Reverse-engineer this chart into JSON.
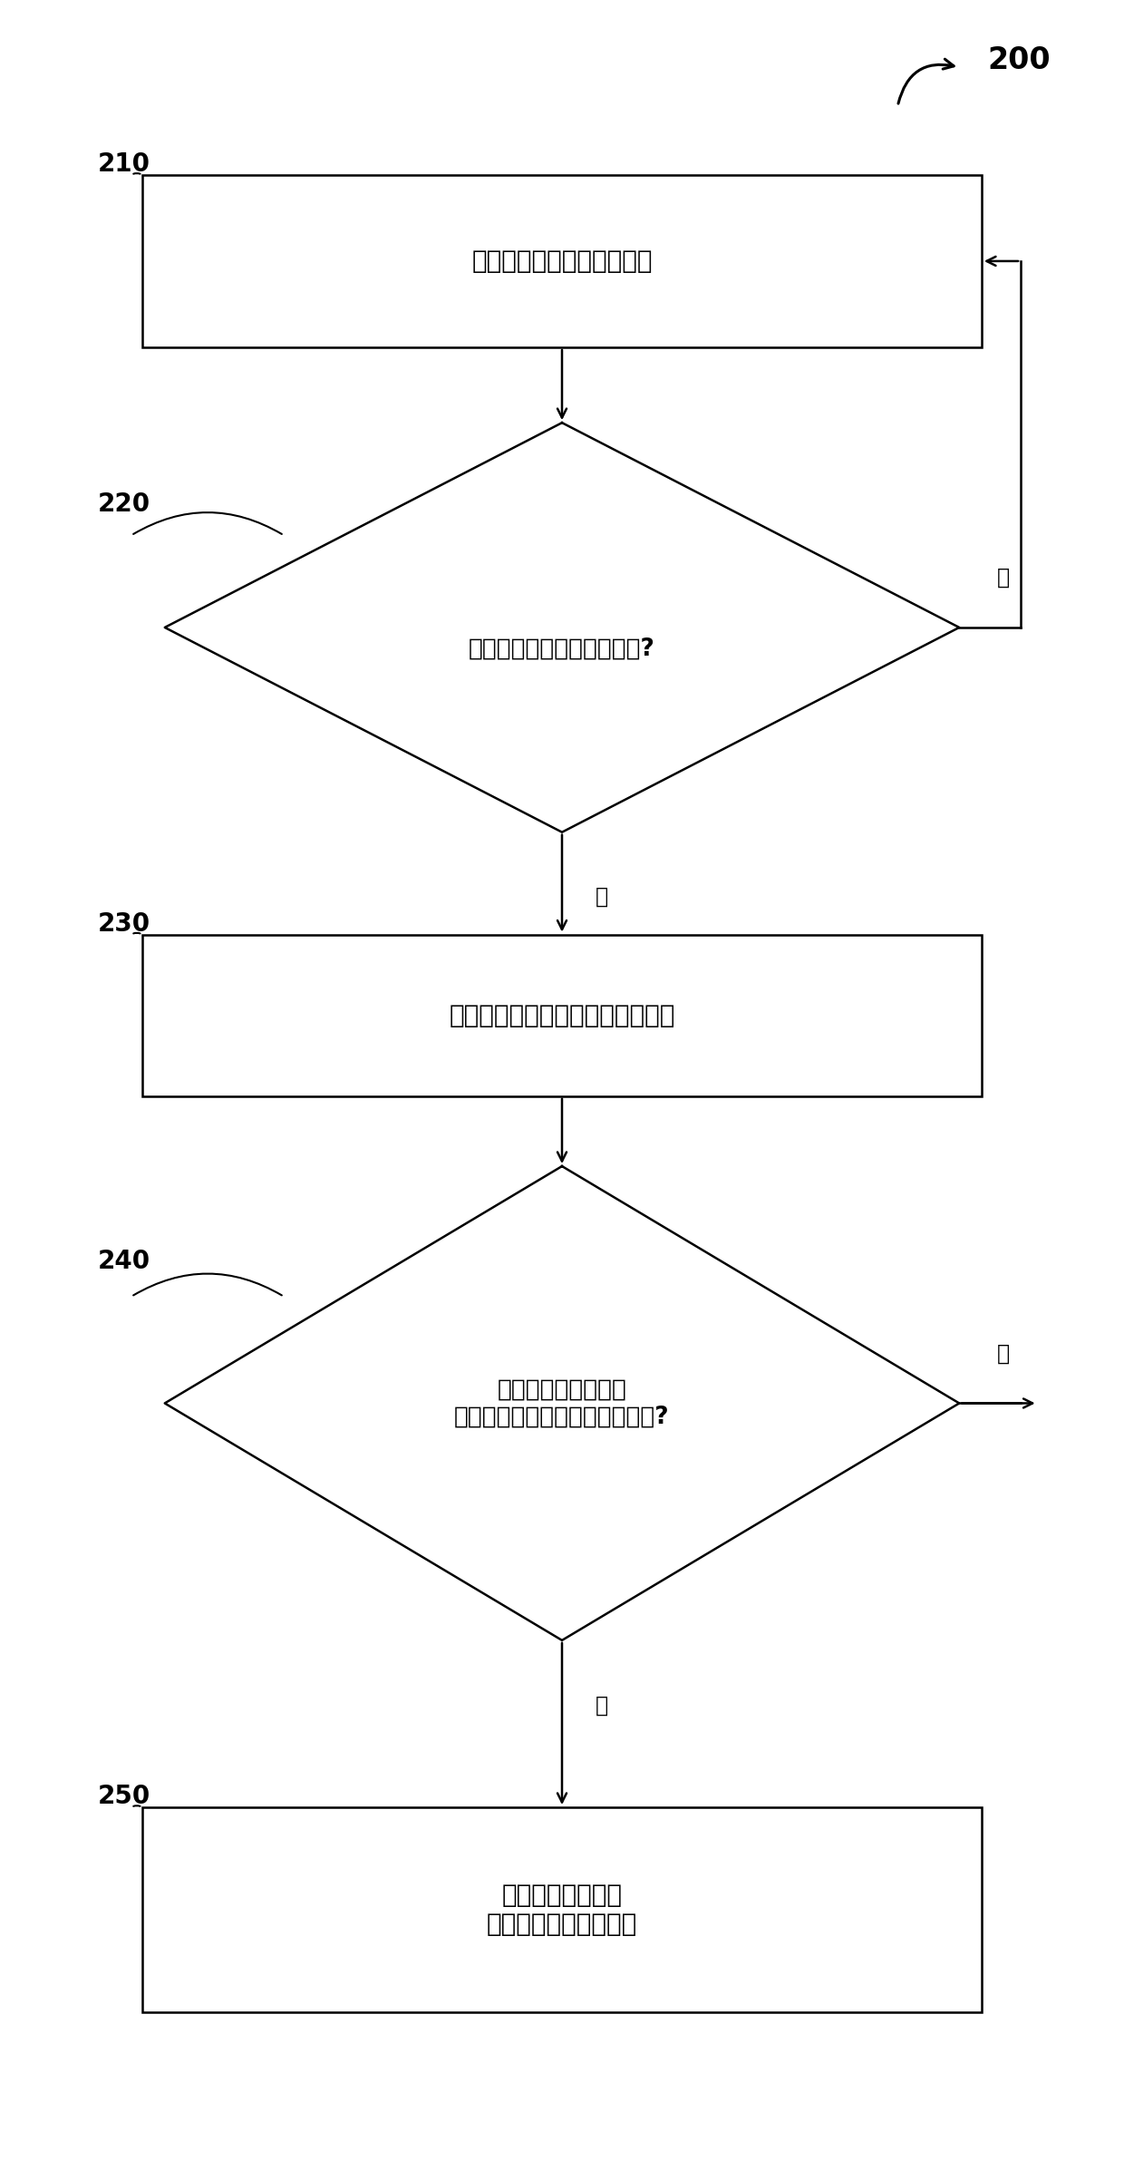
{
  "bg_color": "#ffffff",
  "line_color": "#000000",
  "fig_width": 12.4,
  "fig_height": 23.82,
  "label_200": "200",
  "label_210": "210",
  "label_220": "220",
  "label_230": "230",
  "label_240": "240",
  "label_250": "250",
  "box1_text": "测量振动计中的物质的流率",
  "diamond1_text": "测量的流率小于低流量阈值?",
  "box2_text": "测量振动计的一个或多个操作参数",
  "diamond2_text": "振动计的一个或多个\n测量的操作参数在对应的范围内?",
  "box3_text": "基于测量的流率来\n确定振动计的零点偏移",
  "yes_label": "是",
  "no_label": "否",
  "font_size_box": 20,
  "font_size_diamond": 19,
  "font_size_label": 17,
  "font_size_ref": 20,
  "font_size_200": 24
}
